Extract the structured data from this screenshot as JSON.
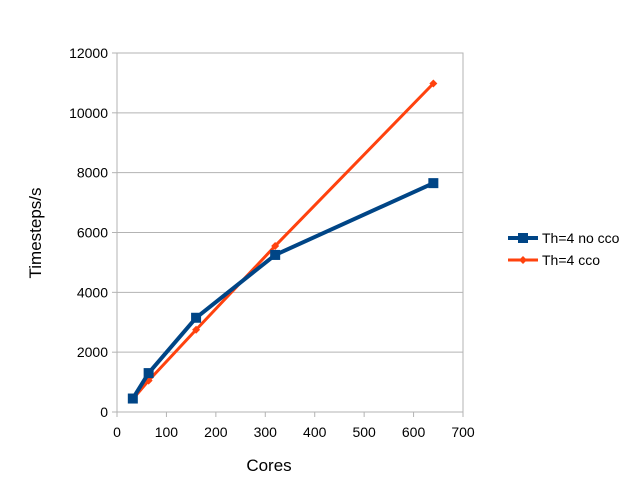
{
  "chart_data": {
    "type": "line",
    "title": "",
    "xlabel": "Cores",
    "ylabel": "Timesteps/s",
    "xlim": [
      0,
      700
    ],
    "ylim": [
      0,
      12000
    ],
    "x_ticks": [
      "0",
      "100",
      "200",
      "300",
      "400",
      "500",
      "600",
      "700"
    ],
    "y_ticks": [
      "0",
      "2000",
      "4000",
      "6000",
      "8000",
      "10000",
      "12000"
    ],
    "grid": "horizontal",
    "legend_position": "right",
    "series": [
      {
        "name": "Th=4 no cco",
        "color": "#004586",
        "marker": "square",
        "x": [
          32,
          64,
          160,
          320,
          640
        ],
        "y": [
          450,
          1300,
          3150,
          5250,
          7650
        ]
      },
      {
        "name": "Th=4 cco",
        "color": "#ff420e",
        "marker": "diamond",
        "x": [
          32,
          64,
          160,
          320,
          640
        ],
        "y": [
          430,
          1050,
          2750,
          5550,
          10980
        ]
      }
    ]
  }
}
